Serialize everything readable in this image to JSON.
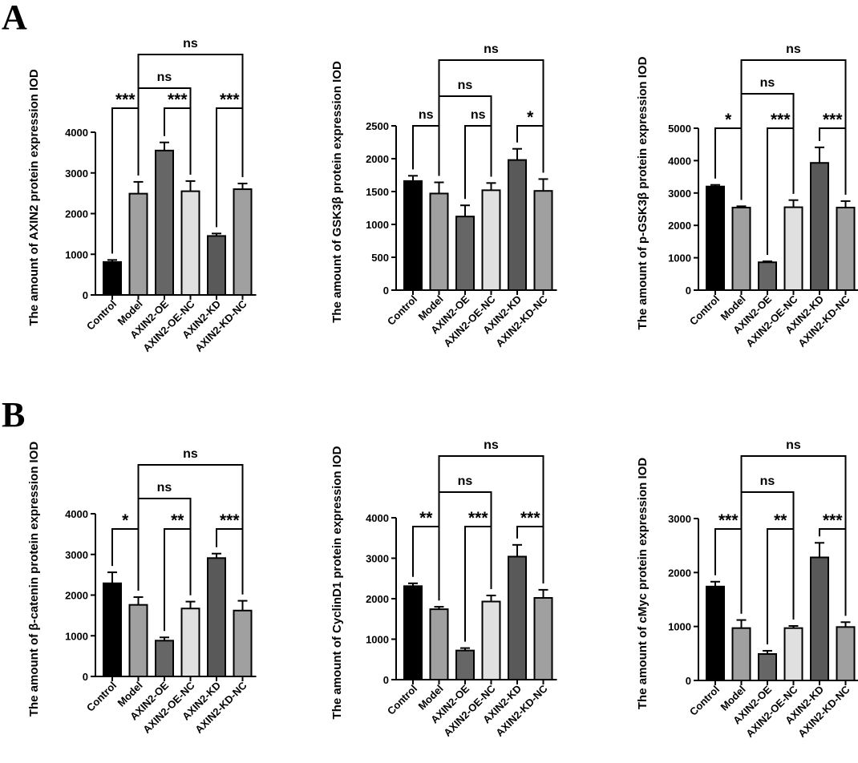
{
  "panel_letters": [
    "A",
    "B"
  ],
  "categories": [
    "Control",
    "Model",
    "AXIN2-OE",
    "AXIN2-OE-NC",
    "AXIN2-KD",
    "AXIN2-KD-NC"
  ],
  "bar_colors": [
    "#000000",
    "#a0a0a0",
    "#666666",
    "#e0e0e0",
    "#595959",
    "#a0a0a0"
  ],
  "chart_data": [
    {
      "type": "bar",
      "ylabel": "The amount of AXIN2 protein expression IOD",
      "ylim": [
        0,
        4000
      ],
      "yticks": [
        0,
        1000,
        2000,
        3000,
        4000
      ],
      "categories": [
        "Control",
        "Model",
        "AXIN2-OE",
        "AXIN2-OE-NC",
        "AXIN2-KD",
        "AXIN2-KD-NC"
      ],
      "values": [
        810,
        2490,
        3550,
        2550,
        1450,
        2600
      ],
      "errors": [
        50,
        290,
        200,
        250,
        60,
        140
      ],
      "significance": [
        {
          "from": 0,
          "to": 1,
          "label": "***",
          "level": 0
        },
        {
          "from": 2,
          "to": 3,
          "label": "***",
          "level": 0
        },
        {
          "from": 4,
          "to": 5,
          "label": "***",
          "level": 0
        },
        {
          "from": 1,
          "to": 3,
          "label": "ns",
          "level": 1
        },
        {
          "from": 1,
          "to": 5,
          "label": "ns",
          "level": 2
        }
      ]
    },
    {
      "type": "bar",
      "ylabel": "The amount of GSK3β protein expression IOD",
      "ylim": [
        0,
        2500
      ],
      "yticks": [
        0,
        500,
        1000,
        1500,
        2000,
        2500
      ],
      "categories": [
        "Control",
        "Model",
        "AXIN2-OE",
        "AXIN2-OE-NC",
        "AXIN2-KD",
        "AXIN2-KD-NC"
      ],
      "values": [
        1660,
        1470,
        1120,
        1520,
        1980,
        1510
      ],
      "errors": [
        80,
        170,
        170,
        110,
        170,
        180
      ],
      "significance": [
        {
          "from": 0,
          "to": 1,
          "label": "ns",
          "level": 0
        },
        {
          "from": 2,
          "to": 3,
          "label": "ns",
          "level": 0
        },
        {
          "from": 4,
          "to": 5,
          "label": "*",
          "level": 0
        },
        {
          "from": 1,
          "to": 3,
          "label": "ns",
          "level": 1
        },
        {
          "from": 1,
          "to": 5,
          "label": "ns",
          "level": 2
        }
      ]
    },
    {
      "type": "bar",
      "ylabel": "The amount of p-GSK3β protein expression IOD",
      "ylim": [
        0,
        5000
      ],
      "yticks": [
        0,
        1000,
        2000,
        3000,
        4000,
        5000
      ],
      "categories": [
        "Control",
        "Model",
        "AXIN2-OE",
        "AXIN2-OE-NC",
        "AXIN2-KD",
        "AXIN2-KD-NC"
      ],
      "values": [
        3200,
        2550,
        860,
        2560,
        3930,
        2550
      ],
      "errors": [
        50,
        40,
        30,
        220,
        480,
        200
      ],
      "significance": [
        {
          "from": 0,
          "to": 1,
          "label": "*",
          "level": 0
        },
        {
          "from": 2,
          "to": 3,
          "label": "***",
          "level": 0
        },
        {
          "from": 4,
          "to": 5,
          "label": "***",
          "level": 0
        },
        {
          "from": 1,
          "to": 3,
          "label": "ns",
          "level": 1
        },
        {
          "from": 1,
          "to": 5,
          "label": "ns",
          "level": 2
        }
      ]
    },
    {
      "type": "bar",
      "ylabel": "The amount of β-catenin protein expression IOD",
      "ylim": [
        0,
        4000
      ],
      "yticks": [
        0,
        1000,
        2000,
        3000,
        4000
      ],
      "categories": [
        "Control",
        "Model",
        "AXIN2-OE",
        "AXIN2-OE-NC",
        "AXIN2-KD",
        "AXIN2-KD-NC"
      ],
      "values": [
        2290,
        1760,
        880,
        1670,
        2910,
        1620
      ],
      "errors": [
        270,
        190,
        80,
        170,
        110,
        240
      ],
      "significance": [
        {
          "from": 0,
          "to": 1,
          "label": "*",
          "level": 0
        },
        {
          "from": 2,
          "to": 3,
          "label": "**",
          "level": 0
        },
        {
          "from": 4,
          "to": 5,
          "label": "***",
          "level": 0
        },
        {
          "from": 1,
          "to": 3,
          "label": "ns",
          "level": 1
        },
        {
          "from": 1,
          "to": 5,
          "label": "ns",
          "level": 2
        }
      ]
    },
    {
      "type": "bar",
      "ylabel": "The amount of CyclinD1 protein expression IOD",
      "ylim": [
        0,
        4000
      ],
      "yticks": [
        0,
        1000,
        2000,
        3000,
        4000
      ],
      "categories": [
        "Control",
        "Model",
        "AXIN2-OE",
        "AXIN2-OE-NC",
        "AXIN2-KD",
        "AXIN2-KD-NC"
      ],
      "values": [
        2310,
        1740,
        720,
        1930,
        3040,
        2020
      ],
      "errors": [
        70,
        60,
        60,
        150,
        290,
        200
      ],
      "significance": [
        {
          "from": 0,
          "to": 1,
          "label": "**",
          "level": 0
        },
        {
          "from": 2,
          "to": 3,
          "label": "***",
          "level": 0
        },
        {
          "from": 4,
          "to": 5,
          "label": "***",
          "level": 0
        },
        {
          "from": 1,
          "to": 3,
          "label": "ns",
          "level": 1
        },
        {
          "from": 1,
          "to": 5,
          "label": "ns",
          "level": 2
        }
      ]
    },
    {
      "type": "bar",
      "ylabel": "The amount of cMyc protein expression IOD",
      "ylim": [
        0,
        3000
      ],
      "yticks": [
        0,
        1000,
        2000,
        3000
      ],
      "categories": [
        "Control",
        "Model",
        "AXIN2-OE",
        "AXIN2-OE-NC",
        "AXIN2-KD",
        "AXIN2-KD-NC"
      ],
      "values": [
        1740,
        970,
        490,
        970,
        2280,
        990
      ],
      "errors": [
        90,
        150,
        60,
        40,
        270,
        90
      ],
      "significance": [
        {
          "from": 0,
          "to": 1,
          "label": "***",
          "level": 0
        },
        {
          "from": 2,
          "to": 3,
          "label": "**",
          "level": 0
        },
        {
          "from": 4,
          "to": 5,
          "label": "***",
          "level": 0
        },
        {
          "from": 1,
          "to": 3,
          "label": "ns",
          "level": 1
        },
        {
          "from": 1,
          "to": 5,
          "label": "ns",
          "level": 2
        }
      ]
    }
  ]
}
